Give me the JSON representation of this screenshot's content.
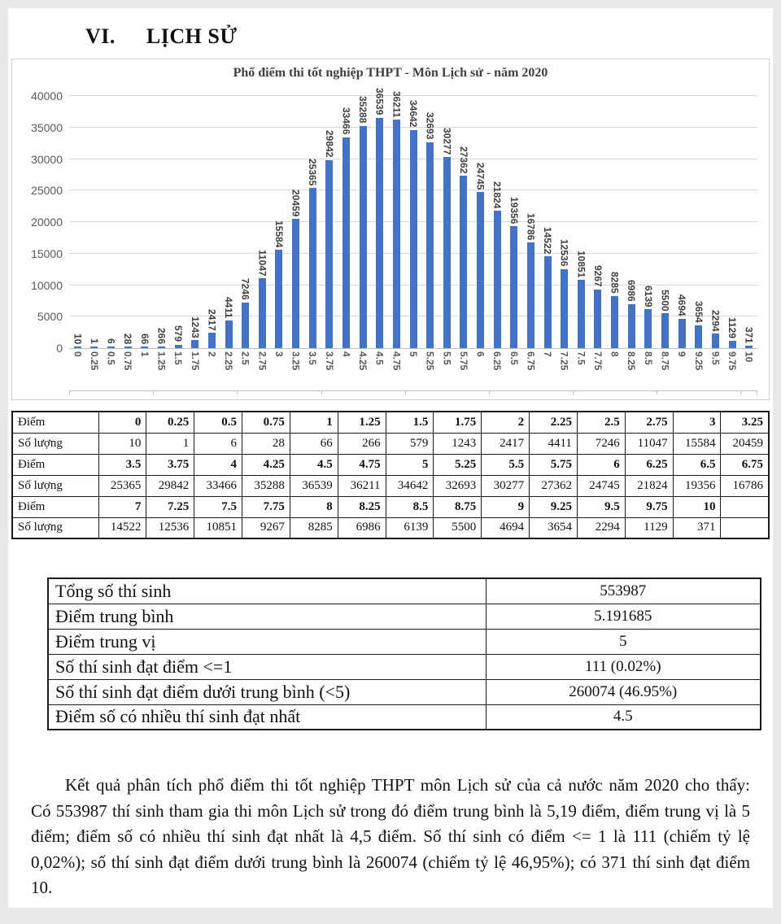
{
  "heading": {
    "number": "VI.",
    "title": "LỊCH SỬ"
  },
  "chart_data": {
    "type": "bar",
    "title": "Phổ điểm thi tốt nghiệp THPT - Môn Lịch sử - năm 2020",
    "categories": [
      "0",
      "0.25",
      "0.5",
      "0.75",
      "1",
      "1.25",
      "1.5",
      "1.75",
      "2",
      "2.25",
      "2.5",
      "2.75",
      "3",
      "3.25",
      "3.5",
      "3.75",
      "4",
      "4.25",
      "4.5",
      "4.75",
      "5",
      "5.25",
      "5.5",
      "5.75",
      "6",
      "6.25",
      "6.5",
      "6.75",
      "7",
      "7.25",
      "7.5",
      "7.75",
      "8",
      "8.25",
      "8.5",
      "8.75",
      "9",
      "9.25",
      "9.5",
      "9.75",
      "10"
    ],
    "values": [
      10,
      1,
      6,
      28,
      66,
      266,
      579,
      1243,
      2417,
      4411,
      7246,
      11047,
      15584,
      20459,
      25365,
      29842,
      33466,
      35288,
      36539,
      36211,
      34642,
      32693,
      30277,
      27362,
      24745,
      21824,
      19356,
      16786,
      14522,
      12536,
      10851,
      9267,
      8285,
      6986,
      6139,
      5500,
      4694,
      3654,
      2294,
      1129,
      371
    ],
    "xlabel": "",
    "ylabel": "",
    "ylim": [
      0,
      40000
    ],
    "ytick_step": 5000,
    "grid": true,
    "value_labels": true,
    "bar_color": "#4472c4",
    "legend": "none"
  },
  "score_table": {
    "rows": [
      {
        "label": "Điểm",
        "kind": "scores",
        "cells": [
          "0",
          "0.25",
          "0.5",
          "0.75",
          "1",
          "1.25",
          "1.5",
          "1.75",
          "2",
          "2.25",
          "2.5",
          "2.75",
          "3",
          "3.25"
        ]
      },
      {
        "label": "Số lượng",
        "kind": "counts",
        "cells": [
          "10",
          "1",
          "6",
          "28",
          "66",
          "266",
          "579",
          "1243",
          "2417",
          "4411",
          "7246",
          "11047",
          "15584",
          "20459"
        ]
      },
      {
        "label": "Điểm",
        "kind": "scores",
        "cells": [
          "3.5",
          "3.75",
          "4",
          "4.25",
          "4.5",
          "4.75",
          "5",
          "5.25",
          "5.5",
          "5.75",
          "6",
          "6.25",
          "6.5",
          "6.75"
        ]
      },
      {
        "label": "Số lượng",
        "kind": "counts",
        "cells": [
          "25365",
          "29842",
          "33466",
          "35288",
          "36539",
          "36211",
          "34642",
          "32693",
          "30277",
          "27362",
          "24745",
          "21824",
          "19356",
          "16786"
        ]
      },
      {
        "label": "Điểm",
        "kind": "scores",
        "cells": [
          "7",
          "7.25",
          "7.5",
          "7.75",
          "8",
          "8.25",
          "8.5",
          "8.75",
          "9",
          "9.25",
          "9.5",
          "9.75",
          "10",
          ""
        ]
      },
      {
        "label": "Số lượng",
        "kind": "counts",
        "cells": [
          "14522",
          "12536",
          "10851",
          "9267",
          "8285",
          "6986",
          "6139",
          "5500",
          "4694",
          "3654",
          "2294",
          "1129",
          "371",
          ""
        ]
      }
    ]
  },
  "summary_table": {
    "rows": [
      {
        "label": "Tổng số thí sinh",
        "value": "553987"
      },
      {
        "label": "Điểm trung bình",
        "value": "5.191685"
      },
      {
        "label": "Điểm trung vị",
        "value": "5"
      },
      {
        "label": "Số thí sinh đạt điểm <=1",
        "value": "111 (0.02%)"
      },
      {
        "label": "Số thí sinh đạt điểm dưới trung bình (<5)",
        "value": "260074 (46.95%)"
      },
      {
        "label": "Điểm số có nhiều thí sinh đạt nhất",
        "value": "4.5"
      }
    ]
  },
  "analysis_paragraph": "Kết quả phân tích phổ điểm thi tốt nghiệp THPT môn Lịch sử của cả nước năm 2020 cho thấy: Có 553987 thí sinh tham gia thi môn Lịch sử trong đó điểm trung bình là 5,19 điểm, điểm trung vị là 5 điểm; điểm số có nhiều thí sinh đạt nhất là 4,5 điểm. Số thí sinh có điểm <= 1 là 111 (chiếm tỷ lệ 0,02%); số thí sinh đạt điểm dưới trung bình là 260074 (chiếm tỷ lệ 46,95%); có 371 thí sinh đạt điểm 10."
}
